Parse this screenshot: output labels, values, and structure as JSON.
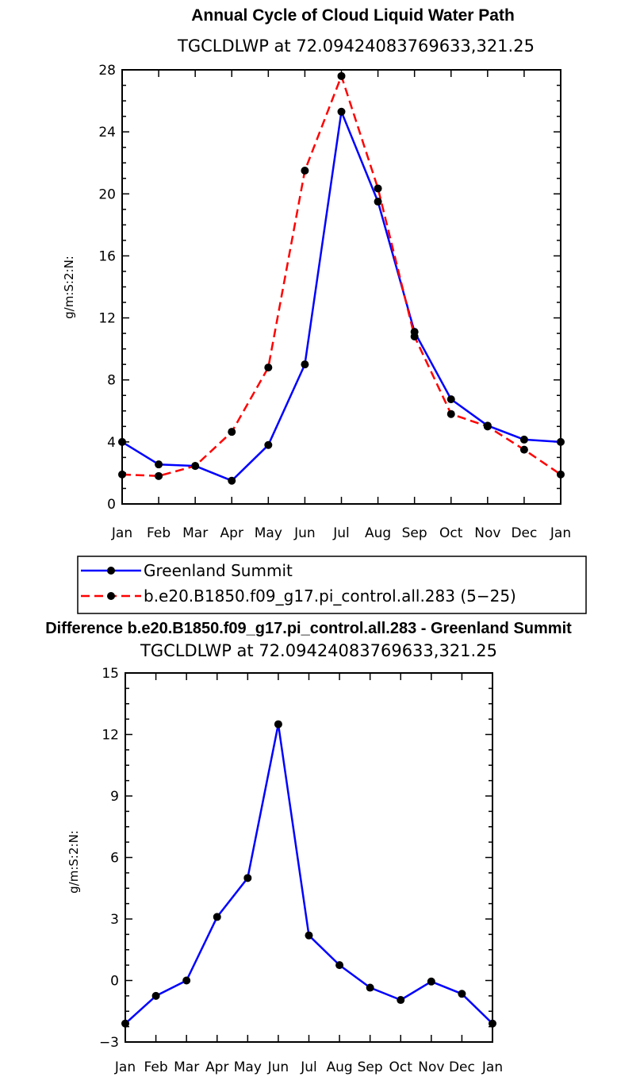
{
  "chart_data": [
    {
      "type": "line",
      "title": "Annual Cycle of Cloud Liquid Water Path",
      "subtitle": "TGCLDLWP  at  72.09424083769633,321.25",
      "ylabel": "g/m:S:2:N:",
      "xlabel": "",
      "categories": [
        "Jan",
        "Feb",
        "Mar",
        "Apr",
        "May",
        "Jun",
        "Jul",
        "Aug",
        "Sep",
        "Oct",
        "Nov",
        "Dec",
        "Jan"
      ],
      "ylim": [
        0,
        28
      ],
      "yticks": [
        0,
        4,
        8,
        12,
        16,
        20,
        24,
        28
      ],
      "yticklabels": [
        "0",
        "4",
        "8",
        "12",
        "16",
        "20",
        "24",
        "28"
      ],
      "series": [
        {
          "name": "Greenland Summit",
          "color": "#0000ff",
          "dash": "solid",
          "values": [
            4.0,
            2.55,
            2.45,
            1.5,
            3.8,
            9.0,
            25.3,
            19.5,
            11.1,
            6.75,
            5.05,
            4.15,
            4.0
          ]
        },
        {
          "name": "b.e20.B1850.f09_g17.pi_control.all.283 (5−25)",
          "color": "#ff0000",
          "dash": "dashed",
          "values": [
            1.9,
            1.8,
            2.45,
            4.65,
            8.8,
            21.5,
            27.6,
            20.35,
            10.8,
            5.8,
            5.0,
            3.5,
            1.9
          ]
        }
      ],
      "legend": {
        "position": "below"
      }
    },
    {
      "type": "line",
      "title": "Difference b.e20.B1850.f09_g17.pi_control.all.283 - Greenland Summit",
      "subtitle": "TGCLDLWP  at  72.09424083769633,321.25",
      "ylabel": "g/m:S:2:N:",
      "xlabel": "",
      "categories": [
        "Jan",
        "Feb",
        "Mar",
        "Apr",
        "May",
        "Jun",
        "Jul",
        "Aug",
        "Sep",
        "Oct",
        "Nov",
        "Dec",
        "Jan"
      ],
      "ylim": [
        -3,
        15
      ],
      "yticks": [
        -3,
        0,
        3,
        6,
        9,
        12,
        15
      ],
      "yticklabels": [
        "−3",
        "0",
        "3",
        "6",
        "9",
        "12",
        "15"
      ],
      "series": [
        {
          "name": "Difference",
          "color": "#0000ff",
          "dash": "solid",
          "values": [
            -2.1,
            -0.75,
            0.0,
            3.1,
            5.0,
            12.5,
            2.2,
            0.75,
            -0.35,
            -0.95,
            -0.05,
            -0.65,
            -2.1
          ]
        }
      ]
    }
  ]
}
